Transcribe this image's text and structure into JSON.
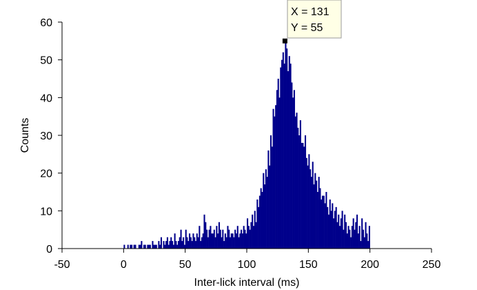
{
  "chart_data": {
    "type": "bar",
    "title": "",
    "xlabel": "Inter-lick interval (ms)",
    "ylabel": "Counts",
    "xlim": [
      -50,
      250
    ],
    "ylim": [
      0,
      60
    ],
    "xticks": [
      -50,
      0,
      50,
      100,
      150,
      200,
      250
    ],
    "yticks": [
      0,
      10,
      20,
      30,
      40,
      50,
      60
    ],
    "grid": false,
    "bin_width": 1,
    "bar_color": "#00008b",
    "series": [
      {
        "x": [
          0,
          1,
          2,
          3,
          4,
          5,
          6,
          7,
          8,
          9,
          10,
          11,
          12,
          13,
          14,
          15,
          16,
          17,
          18,
          19,
          20,
          21,
          22,
          23,
          24,
          25,
          26,
          27,
          28,
          29,
          30,
          31,
          32,
          33,
          34,
          35,
          36,
          37,
          38,
          39,
          40,
          41,
          42,
          43,
          44,
          45,
          46,
          47,
          48,
          49,
          50,
          51,
          52,
          53,
          54,
          55,
          56,
          57,
          58,
          59,
          60,
          61,
          62,
          63,
          64,
          65,
          66,
          67,
          68,
          69,
          70,
          71,
          72,
          73,
          74,
          75,
          76,
          77,
          78,
          79,
          80,
          81,
          82,
          83,
          84,
          85,
          86,
          87,
          88,
          89,
          90,
          91,
          92,
          93,
          94,
          95,
          96,
          97,
          98,
          99,
          100,
          101,
          102,
          103,
          104,
          105,
          106,
          107,
          108,
          109,
          110,
          111,
          112,
          113,
          114,
          115,
          116,
          117,
          118,
          119,
          120,
          121,
          122,
          123,
          124,
          125,
          126,
          127,
          128,
          129,
          130,
          131,
          132,
          133,
          134,
          135,
          136,
          137,
          138,
          139,
          140,
          141,
          142,
          143,
          144,
          145,
          146,
          147,
          148,
          149,
          150,
          151,
          152,
          153,
          154,
          155,
          156,
          157,
          158,
          159,
          160,
          161,
          162,
          163,
          164,
          165,
          166,
          167,
          168,
          169,
          170,
          171,
          172,
          173,
          174,
          175,
          176,
          177,
          178,
          179,
          180,
          181,
          182,
          183,
          184,
          185,
          186,
          187,
          188,
          189,
          190,
          191,
          192,
          193,
          194,
          195,
          196,
          197,
          198,
          199
        ],
        "values": [
          1,
          0,
          0,
          1,
          0,
          1,
          1,
          0,
          1,
          1,
          0,
          0,
          1,
          1,
          2,
          0,
          1,
          1,
          0,
          1,
          1,
          1,
          0,
          2,
          1,
          1,
          1,
          0,
          2,
          1,
          3,
          0,
          2,
          1,
          2,
          3,
          1,
          2,
          3,
          2,
          1,
          4,
          2,
          1,
          2,
          3,
          5,
          2,
          3,
          1,
          5,
          3,
          2,
          4,
          3,
          2,
          4,
          3,
          2,
          4,
          3,
          6,
          2,
          3,
          4,
          9,
          7,
          5,
          3,
          5,
          6,
          4,
          4,
          5,
          3,
          6,
          4,
          7,
          5,
          3,
          5,
          2,
          4,
          3,
          6,
          5,
          3,
          4,
          4,
          3,
          5,
          4,
          6,
          3,
          4,
          5,
          4,
          6,
          5,
          4,
          8,
          6,
          5,
          7,
          9,
          6,
          10,
          7,
          13,
          11,
          14,
          16,
          15,
          20,
          17,
          21,
          19,
          26,
          22,
          30,
          27,
          37,
          35,
          38,
          42,
          45,
          40,
          48,
          50,
          52,
          49,
          55,
          53,
          47,
          51,
          49,
          44,
          40,
          42,
          35,
          36,
          32,
          30,
          34,
          28,
          28,
          27,
          30,
          24,
          22,
          25,
          21,
          19,
          23,
          17,
          20,
          18,
          15,
          19,
          16,
          13,
          14,
          14,
          12,
          15,
          11,
          9,
          13,
          10,
          12,
          8,
          10,
          11,
          7,
          9,
          6,
          8,
          10,
          5,
          9,
          7,
          4,
          6,
          5,
          3,
          6,
          8,
          5,
          7,
          9,
          4,
          6,
          2,
          8,
          5,
          3,
          7,
          4,
          2,
          6
        ]
      }
    ],
    "annotation": {
      "x_label": "X = 131",
      "y_label": "Y = 55",
      "point": [
        131,
        55
      ],
      "marker_color": "#000000",
      "box_fill": "#ffffe6"
    }
  }
}
